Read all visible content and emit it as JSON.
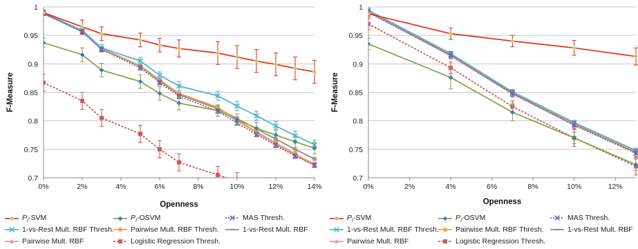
{
  "chart_data": [
    {
      "type": "line",
      "xlabel": "Openness",
      "ylabel": "F-Measure",
      "x_ticks": [
        "0%",
        "2%",
        "4%",
        "6%",
        "8%",
        "10%",
        "12%",
        "14%"
      ],
      "y_ticks": [
        "0.7",
        "0.75",
        "0.8",
        "0.85",
        "0.9",
        "0.95",
        "1"
      ],
      "xlim": [
        0,
        14
      ],
      "ylim": [
        0.7,
        1.0
      ],
      "grid": true,
      "error_bars": true,
      "x": [
        0,
        2,
        3,
        5,
        6,
        7,
        9,
        10,
        11,
        12,
        13,
        14
      ],
      "series": [
        {
          "name": "PI-SVM",
          "values": [
            0.99,
            0.965,
            0.953,
            0.942,
            0.933,
            0.927,
            0.919,
            0.912,
            0.905,
            0.899,
            0.892,
            0.886
          ],
          "err": [
            0.005,
            0.012,
            0.012,
            0.012,
            0.012,
            0.015,
            0.02,
            0.02,
            0.02,
            0.02,
            0.02,
            0.02
          ]
        },
        {
          "name": "PI-OSVM",
          "values": [
            0.937,
            0.916,
            0.889,
            0.869,
            0.848,
            0.831,
            0.818,
            0.802,
            0.787,
            0.775,
            0.763,
            0.752
          ],
          "err": [
            0.008,
            0.012,
            0.012,
            0.012,
            0.012,
            0.012,
            0.01,
            0.01,
            0.01,
            0.01,
            0.01,
            0.01
          ]
        },
        {
          "name": "MAS Thresh.",
          "values": [
            0.989,
            0.956,
            0.925,
            0.893,
            0.867,
            0.843,
            0.817,
            0.796,
            0.776,
            0.757,
            0.738,
            0.722
          ],
          "err": [
            0.004,
            0.004,
            0.004,
            0.004,
            0.004,
            0.004,
            0.004,
            0.004,
            0.004,
            0.004,
            0.004,
            0.004
          ]
        },
        {
          "name": "1-vs-Rest Mult. RBF Thresh.",
          "values": [
            0.989,
            0.959,
            0.928,
            0.905,
            0.88,
            0.861,
            0.844,
            0.826,
            0.809,
            0.791,
            0.774,
            0.758
          ],
          "err": [
            0.004,
            0.006,
            0.006,
            0.006,
            0.006,
            0.008,
            0.008,
            0.008,
            0.008,
            0.008,
            0.008,
            0.008
          ]
        },
        {
          "name": "Pairwise Mult. RBF Thresh.",
          "values": [
            0.99,
            0.958,
            0.927,
            0.897,
            0.872,
            0.848,
            0.824,
            0.801,
            0.781,
            0.761,
            0.742,
            0.724
          ],
          "err": [
            0.003,
            0.003,
            0.003,
            0.003,
            0.003,
            0.003,
            0.003,
            0.003,
            0.003,
            0.003,
            0.003,
            0.003
          ]
        },
        {
          "name": "1-vs-Rest Mult. RBF",
          "values": [
            0.988,
            0.957,
            0.926,
            0.896,
            0.87,
            0.846,
            0.822,
            0.804,
            0.786,
            0.768,
            0.75,
            0.733
          ],
          "err": [
            0.003,
            0.003,
            0.003,
            0.003,
            0.003,
            0.003,
            0.003,
            0.003,
            0.003,
            0.003,
            0.003,
            0.003
          ]
        },
        {
          "name": "Pairwise Mult. RBF",
          "values": [
            0.99,
            0.958,
            0.927,
            0.896,
            0.87,
            0.846,
            0.821,
            0.8,
            0.779,
            0.759,
            0.74,
            0.722
          ],
          "err": [
            0.003,
            0.003,
            0.003,
            0.003,
            0.003,
            0.003,
            0.003,
            0.003,
            0.003,
            0.003,
            0.003,
            0.003
          ]
        },
        {
          "name": "Logistic Regression Thresh.",
          "x": [
            0,
            2,
            3,
            5,
            6,
            7,
            9,
            10
          ],
          "values": [
            0.867,
            0.835,
            0.805,
            0.777,
            0.75,
            0.727,
            0.705,
            0.694
          ],
          "err": [
            0.015,
            0.015,
            0.015,
            0.015,
            0.015,
            0.015,
            0.015,
            0.015
          ]
        }
      ]
    },
    {
      "type": "line",
      "xlabel": "Openness",
      "ylabel": "F-Measure",
      "x_ticks": [
        "0%",
        "2%",
        "4%",
        "6%",
        "8%",
        "10%",
        "12%"
      ],
      "y_ticks": [
        "0.7",
        "0.75",
        "0.8",
        "0.85",
        "0.9",
        "0.95",
        "1"
      ],
      "xlim": [
        0,
        13
      ],
      "ylim": [
        0.7,
        1.0
      ],
      "grid": true,
      "error_bars": true,
      "x": [
        0,
        4,
        7,
        10,
        13
      ],
      "series": [
        {
          "name": "PI-SVM",
          "values": [
            0.988,
            0.953,
            0.94,
            0.928,
            0.913
          ],
          "err": [
            0.005,
            0.01,
            0.01,
            0.013,
            0.015
          ]
        },
        {
          "name": "PI-OSVM",
          "values": [
            0.935,
            0.876,
            0.815,
            0.77,
            0.723
          ],
          "err": [
            0.01,
            0.02,
            0.015,
            0.01,
            0.01
          ]
        },
        {
          "name": "MAS Thresh.",
          "values": [
            0.99,
            0.915,
            0.848,
            0.792,
            0.743
          ],
          "err": [
            0.005,
            0.006,
            0.006,
            0.006,
            0.006
          ]
        },
        {
          "name": "1-vs-Rest Mult. RBF Thresh.",
          "values": [
            0.994,
            0.918,
            0.851,
            0.797,
            0.748
          ],
          "err": [
            0.004,
            0.004,
            0.004,
            0.004,
            0.004
          ]
        },
        {
          "name": "Pairwise Mult. RBF Thresh.",
          "values": [
            0.993,
            0.917,
            0.85,
            0.796,
            0.746
          ],
          "err": [
            0.004,
            0.004,
            0.004,
            0.004,
            0.004
          ]
        },
        {
          "name": "1-vs-Rest Mult. RBF",
          "values": [
            0.992,
            0.916,
            0.849,
            0.795,
            0.745
          ],
          "err": [
            0.004,
            0.004,
            0.004,
            0.004,
            0.004
          ]
        },
        {
          "name": "Pairwise Mult. RBF",
          "values": [
            0.991,
            0.914,
            0.847,
            0.793,
            0.744
          ],
          "err": [
            0.004,
            0.004,
            0.004,
            0.004,
            0.004
          ]
        },
        {
          "name": "Logistic Regression Thresh.",
          "values": [
            0.97,
            0.893,
            0.825,
            0.77,
            0.72
          ],
          "err": [
            0.01,
            0.01,
            0.01,
            0.015,
            0.015
          ]
        }
      ]
    }
  ],
  "legend_labels": [
    "PI-SVM",
    "PI-OSVM",
    "MAS Thresh.",
    "1-vs-Rest Mult. RBF Thresh.",
    "Pairwise Mult. RBF Thresh.",
    "1-vs-Rest Mult. RBF",
    "Pairwise Mult. RBF",
    "Logistic Regression Thresh."
  ],
  "series_styles": [
    {
      "color": "#e8361e",
      "marker": "diamond",
      "marker_color": "#c8c96a",
      "dash": ""
    },
    {
      "color": "#8aa64d",
      "marker": "diamond",
      "marker_color": "#3d7ab8",
      "dash": ""
    },
    {
      "color": "#7a5ea8",
      "marker": "x",
      "marker_color": "#7a5ea8",
      "dash": "2,2"
    },
    {
      "color": "#4bb8cf",
      "marker": "x",
      "marker_color": "#4bb8cf",
      "dash": ""
    },
    {
      "color": "#f4a14d",
      "marker": "circle",
      "marker_color": "#f4a14d",
      "dash": ""
    },
    {
      "color": "#8c8c8c",
      "marker": "dash",
      "marker_color": "#8c8c8c",
      "dash": ""
    },
    {
      "color": "#e49aa2",
      "marker": "triangle",
      "marker_color": "#e49aa2",
      "dash": ""
    },
    {
      "color": "#cc5a5a",
      "marker": "square",
      "marker_color": "#cc5a5a",
      "dash": "3,2"
    }
  ]
}
